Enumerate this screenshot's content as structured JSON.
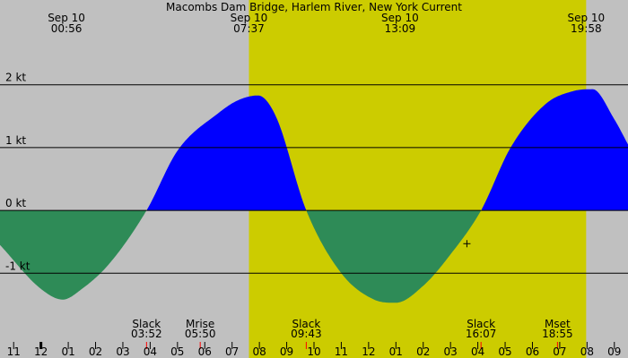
{
  "colors": {
    "night": "#c0c0c0",
    "day": "#cccc00",
    "flood": "#0000ff",
    "ebb": "#2e8b57",
    "line": "#000000",
    "moon_tick": "#ff0000"
  },
  "chart_data": {
    "type": "area",
    "title": "Macombs Dam Bridge, Harlem River, New York Current",
    "unit": "kt",
    "xlim_hours": [
      -1.5,
      21.5
    ],
    "ylim": [
      -2.35,
      3.35
    ],
    "y_ticks": [
      {
        "value": 2,
        "label": "2 kt"
      },
      {
        "value": 1,
        "label": "1 kt"
      },
      {
        "value": 0,
        "label": "0 kt"
      },
      {
        "value": -1,
        "label": "-1 kt"
      }
    ],
    "x_tick_labels": [
      {
        "hour": -1,
        "label": "11"
      },
      {
        "hour": 0,
        "label": "12"
      },
      {
        "hour": 1,
        "label": "01"
      },
      {
        "hour": 2,
        "label": "02"
      },
      {
        "hour": 3,
        "label": "03"
      },
      {
        "hour": 4,
        "label": "04"
      },
      {
        "hour": 5,
        "label": "05"
      },
      {
        "hour": 6,
        "label": "06"
      },
      {
        "hour": 7,
        "label": "07"
      },
      {
        "hour": 8,
        "label": "08"
      },
      {
        "hour": 9,
        "label": "09"
      },
      {
        "hour": 10,
        "label": "10"
      },
      {
        "hour": 11,
        "label": "11"
      },
      {
        "hour": 12,
        "label": "12"
      },
      {
        "hour": 13,
        "label": "01"
      },
      {
        "hour": 14,
        "label": "02"
      },
      {
        "hour": 15,
        "label": "03"
      },
      {
        "hour": 16,
        "label": "04"
      },
      {
        "hour": 17,
        "label": "05"
      },
      {
        "hour": 18,
        "label": "06"
      },
      {
        "hour": 19,
        "label": "07"
      },
      {
        "hour": 20,
        "label": "08"
      },
      {
        "hour": 21,
        "label": "09"
      }
    ],
    "day_shading": {
      "start_hour": 7.617,
      "end_hour": 19.967
    },
    "top_annotations": [
      {
        "hour": 0.933,
        "date": "Sep 10",
        "time": "00:56"
      },
      {
        "hour": 7.617,
        "date": "Sep 10",
        "time": "07:37"
      },
      {
        "hour": 13.15,
        "date": "Sep 10",
        "time": "13:09"
      },
      {
        "hour": 19.967,
        "date": "Sep 10",
        "time": "19:58"
      }
    ],
    "bottom_events": [
      {
        "hour": 3.867,
        "label": "Slack",
        "time": "03:52"
      },
      {
        "hour": 5.833,
        "label": "Mrise",
        "time": "05:50"
      },
      {
        "hour": 9.717,
        "label": "Slack",
        "time": "09:43"
      },
      {
        "hour": 16.117,
        "label": "Slack",
        "time": "16:07"
      },
      {
        "hour": 18.917,
        "label": "Mset",
        "time": "18:55"
      }
    ],
    "current_points": [
      {
        "hour": -1.5,
        "kt": -0.55
      },
      {
        "hour": 0.0,
        "kt": -1.25
      },
      {
        "hour": 0.8,
        "kt": -1.42
      },
      {
        "hour": 1.5,
        "kt": -1.25
      },
      {
        "hour": 2.5,
        "kt": -0.85
      },
      {
        "hour": 3.867,
        "kt": 0.0
      },
      {
        "hour": 5.0,
        "kt": 0.95
      },
      {
        "hour": 6.5,
        "kt": 1.55
      },
      {
        "hour": 7.2,
        "kt": 1.75
      },
      {
        "hour": 7.95,
        "kt": 1.83
      },
      {
        "hour": 8.6,
        "kt": 1.5
      },
      {
        "hour": 9.717,
        "kt": 0.0
      },
      {
        "hour": 11.0,
        "kt": -1.0
      },
      {
        "hour": 12.2,
        "kt": -1.42
      },
      {
        "hour": 13.0,
        "kt": -1.47
      },
      {
        "hour": 14.0,
        "kt": -1.2
      },
      {
        "hour": 15.0,
        "kt": -0.7
      },
      {
        "hour": 16.117,
        "kt": 0.0
      },
      {
        "hour": 17.2,
        "kt": 1.0
      },
      {
        "hour": 18.5,
        "kt": 1.7
      },
      {
        "hour": 19.5,
        "kt": 1.9
      },
      {
        "hour": 20.2,
        "kt": 1.93
      },
      {
        "hour": 21.0,
        "kt": 1.45
      },
      {
        "hour": 21.5,
        "kt": 1.05
      }
    ],
    "marker": {
      "hour": 15.6,
      "kt": -0.53
    }
  }
}
